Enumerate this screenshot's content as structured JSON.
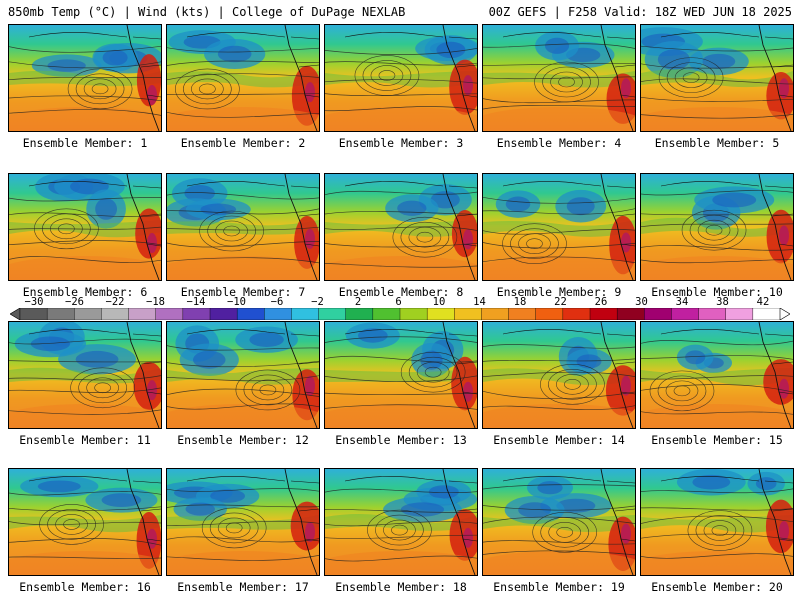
{
  "header": {
    "left": "850mb Temp (°C) | Wind (kts) | College of DuPage NEXLAB",
    "right": "00Z GEFS | F258 Valid: 18Z WED JUN 18 2025"
  },
  "colorbar": {
    "labels": [
      "−30",
      "−26",
      "−22",
      "−18",
      "−14",
      "−10",
      "−6",
      "−2",
      "2",
      "6",
      "10",
      "14",
      "18",
      "22",
      "26",
      "30",
      "34",
      "38",
      "42"
    ],
    "colors": [
      "#5a5a5a",
      "#7a7a7a",
      "#9a9a9a",
      "#b8b8b8",
      "#c8a0c8",
      "#b070c0",
      "#8040b0",
      "#5020a0",
      "#2050d0",
      "#3090e0",
      "#30c0e0",
      "#30d0a0",
      "#20b050",
      "#50c030",
      "#a0d020",
      "#e0e020",
      "#f0c020",
      "#f0a020",
      "#f08020",
      "#f06010",
      "#e03010",
      "#c00010",
      "#900020",
      "#a00070",
      "#c020a0",
      "#e060c0",
      "#f0a0e0",
      "#ffffff"
    ]
  },
  "panels": [
    {
      "caption": "Ensemble Member: 1"
    },
    {
      "caption": "Ensemble Member: 2"
    },
    {
      "caption": "Ensemble Member: 3"
    },
    {
      "caption": "Ensemble Member: 4"
    },
    {
      "caption": "Ensemble Member: 5"
    },
    {
      "caption": "Ensemble Member: 6"
    },
    {
      "caption": "Ensemble Member: 7"
    },
    {
      "caption": "Ensemble Member: 8"
    },
    {
      "caption": "Ensemble Member: 9"
    },
    {
      "caption": "Ensemble Member: 10"
    },
    {
      "caption": "Ensemble Member: 11"
    },
    {
      "caption": "Ensemble Member: 12"
    },
    {
      "caption": "Ensemble Member: 13"
    },
    {
      "caption": "Ensemble Member: 14"
    },
    {
      "caption": "Ensemble Member: 15"
    },
    {
      "caption": "Ensemble Member: 16"
    },
    {
      "caption": "Ensemble Member: 17"
    },
    {
      "caption": "Ensemble Member: 18"
    },
    {
      "caption": "Ensemble Member: 19"
    },
    {
      "caption": "Ensemble Member: 20"
    }
  ]
}
